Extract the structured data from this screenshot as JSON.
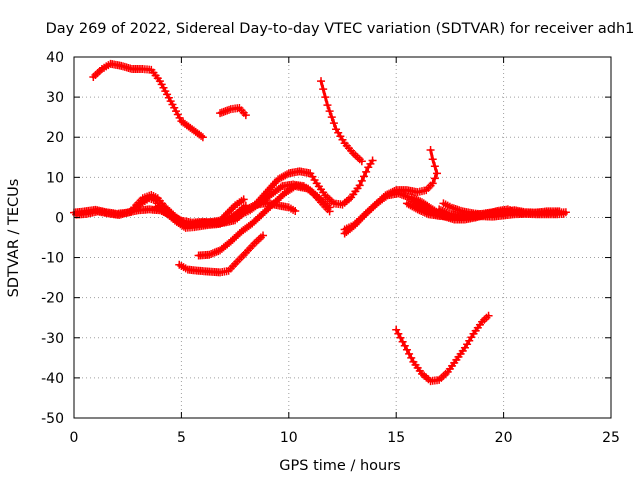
{
  "chart_data": {
    "type": "scatter",
    "title": "Day 269 of 2022, Sidereal Day-to-day VTEC variation (SDTVAR) for receiver adh1",
    "xlabel": "GPS time / hours",
    "ylabel": "SDTVAR / TECUs",
    "xlim": [
      0,
      25
    ],
    "ylim": [
      -50,
      40
    ],
    "xticks": [
      0,
      5,
      10,
      15,
      20,
      25
    ],
    "yticks": [
      -50,
      -40,
      -30,
      -20,
      -10,
      0,
      10,
      20,
      30,
      40
    ],
    "grid": true,
    "marker": "plus",
    "color": "#ff0000",
    "series": [
      {
        "name": "s1",
        "points": [
          [
            0.9,
            35
          ],
          [
            1.3,
            37
          ],
          [
            1.7,
            38.3
          ],
          [
            2.2,
            37.8
          ],
          [
            2.7,
            37
          ],
          [
            3.2,
            37
          ],
          [
            3.6,
            36.8
          ],
          [
            4.0,
            34
          ],
          [
            4.5,
            29
          ],
          [
            5.0,
            24
          ],
          [
            5.5,
            22
          ],
          [
            6.0,
            20
          ]
        ]
      },
      {
        "name": "s2",
        "points": [
          [
            6.8,
            26
          ],
          [
            7.3,
            27
          ],
          [
            7.7,
            27.3
          ],
          [
            8.0,
            25.5
          ]
        ]
      },
      {
        "name": "s3",
        "points": [
          [
            11.5,
            34
          ],
          [
            11.8,
            28
          ],
          [
            12.2,
            22
          ],
          [
            12.6,
            18.5
          ],
          [
            13.0,
            16
          ],
          [
            13.4,
            14
          ]
        ]
      },
      {
        "name": "s4",
        "points": [
          [
            0.0,
            1.2
          ],
          [
            0.5,
            1.5
          ],
          [
            1.0,
            1.9
          ],
          [
            1.5,
            1.3
          ],
          [
            2.0,
            0.9
          ],
          [
            2.5,
            1.2
          ],
          [
            3.0,
            1.8
          ],
          [
            3.5,
            2.0
          ],
          [
            4.0,
            1.8
          ],
          [
            4.5,
            0.6
          ],
          [
            5.0,
            -0.8
          ],
          [
            5.5,
            -1.3
          ],
          [
            6.0,
            -1.1
          ],
          [
            6.5,
            -1.3
          ],
          [
            7.0,
            -1.0
          ],
          [
            7.5,
            0.6
          ],
          [
            8.0,
            2.0
          ],
          [
            8.5,
            3.2
          ],
          [
            9.0,
            3.6
          ],
          [
            9.5,
            3.0
          ],
          [
            10.0,
            2.5
          ],
          [
            10.3,
            1.6
          ]
        ]
      },
      {
        "name": "s5",
        "points": [
          [
            0.1,
            0.7
          ],
          [
            0.6,
            0.9
          ],
          [
            1.1,
            1.5
          ],
          [
            1.6,
            1.0
          ],
          [
            2.1,
            0.6
          ],
          [
            2.6,
            1.4
          ],
          [
            3.1,
            3.4
          ],
          [
            3.5,
            4.8
          ],
          [
            3.8,
            4.2
          ],
          [
            4.2,
            1.6
          ],
          [
            4.7,
            -0.8
          ],
          [
            5.2,
            -2.6
          ],
          [
            5.6,
            -2.4
          ],
          [
            6.2,
            -1.9
          ],
          [
            6.8,
            -1.6
          ],
          [
            7.3,
            -0.4
          ],
          [
            7.7,
            1.6
          ],
          [
            8.0,
            2.9
          ]
        ]
      },
      {
        "name": "s6",
        "points": [
          [
            2.8,
            2.5
          ],
          [
            3.2,
            4.8
          ],
          [
            3.6,
            5.6
          ],
          [
            3.9,
            4.8
          ],
          [
            4.2,
            2.8
          ],
          [
            4.7,
            0.3
          ],
          [
            5.2,
            -1.9
          ],
          [
            5.7,
            -1.6
          ],
          [
            6.3,
            -1.6
          ],
          [
            7.0,
            -1.3
          ],
          [
            7.5,
            -0.7
          ],
          [
            7.9,
            1.1
          ]
        ]
      },
      {
        "name": "s7",
        "points": [
          [
            3.8,
            2.5
          ],
          [
            4.2,
            1.4
          ],
          [
            4.7,
            -0.4
          ],
          [
            5.3,
            -2.0
          ],
          [
            5.8,
            -1.5
          ],
          [
            6.3,
            -1.2
          ],
          [
            6.8,
            -0.8
          ],
          [
            7.5,
            3.0
          ],
          [
            7.9,
            4.5
          ]
        ]
      },
      {
        "name": "s8",
        "points": [
          [
            8.0,
            1.5
          ],
          [
            8.5,
            3.5
          ],
          [
            9.0,
            6.5
          ],
          [
            9.5,
            9.5
          ],
          [
            10.0,
            11.0
          ],
          [
            10.5,
            11.5
          ],
          [
            11.0,
            11.0
          ],
          [
            11.3,
            8.5
          ],
          [
            11.7,
            5.5
          ],
          [
            12.1,
            3.5
          ],
          [
            12.5,
            3.2
          ],
          [
            12.9,
            5.0
          ],
          [
            13.3,
            8.0
          ],
          [
            13.7,
            12.5
          ],
          [
            13.9,
            14.2
          ]
        ]
      },
      {
        "name": "s9",
        "points": [
          [
            7.8,
            0.8
          ],
          [
            8.2,
            1.8
          ],
          [
            8.7,
            3.8
          ],
          [
            9.2,
            5.8
          ],
          [
            9.7,
            7.8
          ],
          [
            10.2,
            8.2
          ],
          [
            10.7,
            7.8
          ],
          [
            11.1,
            6.2
          ],
          [
            11.5,
            3.8
          ],
          [
            11.9,
            1.5
          ]
        ]
      },
      {
        "name": "s10",
        "points": [
          [
            5.8,
            -9.5
          ],
          [
            6.3,
            -9.3
          ],
          [
            6.8,
            -8.2
          ],
          [
            7.3,
            -6.0
          ],
          [
            7.8,
            -3.5
          ],
          [
            8.3,
            -1.5
          ],
          [
            8.8,
            1.0
          ],
          [
            9.3,
            3.5
          ],
          [
            9.8,
            6.0
          ],
          [
            10.3,
            7.8
          ],
          [
            10.9,
            7.2
          ],
          [
            11.5,
            4.5
          ],
          [
            11.9,
            2.5
          ]
        ]
      },
      {
        "name": "s11",
        "points": [
          [
            4.9,
            -11.8
          ],
          [
            5.3,
            -13.0
          ],
          [
            5.8,
            -13.3
          ],
          [
            6.3,
            -13.5
          ],
          [
            6.8,
            -13.7
          ],
          [
            7.2,
            -13.3
          ],
          [
            7.6,
            -11.0
          ],
          [
            8.0,
            -8.8
          ],
          [
            8.4,
            -6.5
          ],
          [
            8.8,
            -4.5
          ]
        ]
      },
      {
        "name": "s12",
        "points": [
          [
            12.6,
            -3.0
          ],
          [
            13.0,
            -2.0
          ],
          [
            13.5,
            0.5
          ],
          [
            14.0,
            3.0
          ],
          [
            14.5,
            5.5
          ],
          [
            15.0,
            6.8
          ],
          [
            15.5,
            6.8
          ],
          [
            16.0,
            6.3
          ],
          [
            16.4,
            6.8
          ],
          [
            16.7,
            8.5
          ],
          [
            16.9,
            11.0
          ],
          [
            16.7,
            14.5
          ],
          [
            16.6,
            16.8
          ]
        ]
      },
      {
        "name": "s13",
        "points": [
          [
            12.6,
            -4.0
          ],
          [
            13.1,
            -1.8
          ],
          [
            13.6,
            1.0
          ],
          [
            14.1,
            3.5
          ],
          [
            14.6,
            5.5
          ],
          [
            15.1,
            6.0
          ],
          [
            15.6,
            5.0
          ],
          [
            16.0,
            3.0
          ],
          [
            16.5,
            1.5
          ],
          [
            17.0,
            0.5
          ],
          [
            17.5,
            0.2
          ],
          [
            18.0,
            0.1
          ],
          [
            18.5,
            0.2
          ],
          [
            19.0,
            0.3
          ],
          [
            19.5,
            0.2
          ],
          [
            20.0,
            0.5
          ],
          [
            20.5,
            0.8
          ],
          [
            21.0,
            0.9
          ],
          [
            21.5,
            0.8
          ],
          [
            22.0,
            0.8
          ],
          [
            22.5,
            0.8
          ],
          [
            22.8,
            0.9
          ]
        ]
      },
      {
        "name": "s14",
        "points": [
          [
            15.5,
            3.5
          ],
          [
            16.0,
            2.0
          ],
          [
            16.5,
            0.8
          ],
          [
            17.0,
            0.4
          ],
          [
            17.5,
            0.2
          ],
          [
            18.0,
            0.3
          ],
          [
            18.5,
            0.5
          ],
          [
            19.0,
            0.9
          ],
          [
            19.5,
            1.3
          ],
          [
            20.0,
            1.2
          ],
          [
            20.5,
            1.8
          ],
          [
            21.0,
            1.3
          ],
          [
            21.5,
            1.2
          ],
          [
            22.0,
            1.1
          ],
          [
            22.5,
            1.2
          ],
          [
            22.9,
            1.3
          ]
        ]
      },
      {
        "name": "s15",
        "points": [
          [
            15.7,
            5.0
          ],
          [
            16.2,
            3.8
          ],
          [
            16.7,
            2.0
          ],
          [
            17.2,
            0.3
          ],
          [
            17.7,
            -0.5
          ],
          [
            18.2,
            -0.5
          ],
          [
            18.7,
            0.0
          ],
          [
            19.2,
            0.8
          ],
          [
            19.7,
            1.6
          ],
          [
            20.2,
            2.0
          ],
          [
            20.6,
            1.4
          ],
          [
            21.0,
            1.0
          ],
          [
            21.5,
            1.2
          ],
          [
            22.0,
            1.5
          ],
          [
            22.6,
            1.5
          ]
        ]
      },
      {
        "name": "s16",
        "points": [
          [
            17.0,
            2.0
          ],
          [
            17.5,
            0.8
          ],
          [
            18.0,
            0.4
          ],
          [
            18.5,
            0.6
          ],
          [
            19.0,
            0.8
          ],
          [
            19.5,
            1.0
          ],
          [
            20.0,
            1.4
          ],
          [
            20.5,
            1.2
          ],
          [
            21.0,
            1.0
          ]
        ]
      },
      {
        "name": "s17",
        "points": [
          [
            17.2,
            3.5
          ],
          [
            17.6,
            2.4
          ],
          [
            18.1,
            1.5
          ],
          [
            18.6,
            1.0
          ],
          [
            19.0,
            0.8
          ]
        ]
      },
      {
        "name": "s18",
        "points": [
          [
            15.0,
            -28.0
          ],
          [
            15.4,
            -32.0
          ],
          [
            15.8,
            -36.0
          ],
          [
            16.2,
            -39.0
          ],
          [
            16.6,
            -40.8
          ],
          [
            17.0,
            -40.5
          ],
          [
            17.4,
            -38.5
          ],
          [
            17.8,
            -35.5
          ],
          [
            18.2,
            -32.5
          ],
          [
            18.6,
            -29.0
          ],
          [
            19.0,
            -26.0
          ],
          [
            19.3,
            -24.5
          ]
        ]
      }
    ]
  }
}
